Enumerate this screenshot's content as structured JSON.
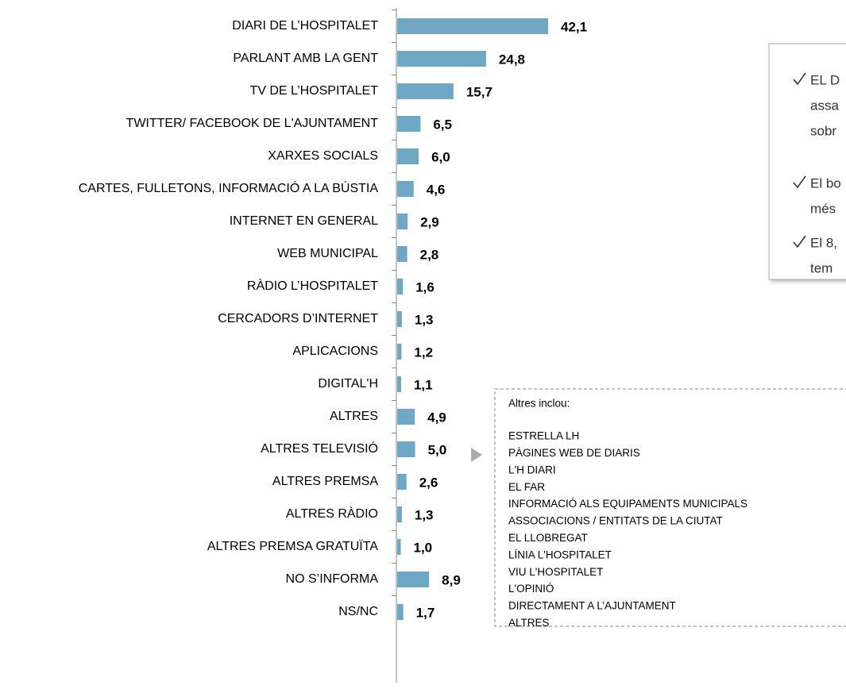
{
  "chart_data": {
    "type": "bar",
    "orientation": "horizontal",
    "categories": [
      "DIARI DE L’HOSPITALET",
      "PARLANT AMB LA GENT",
      "TV DE L’HOSPITALET",
      "TWITTER/ FACEBOOK DE L'AJUNTAMENT",
      "XARXES SOCIALS",
      "CARTES, FULLETONS, INFORMACIÓ A LA BÚSTIA",
      "INTERNET EN GENERAL",
      "WEB MUNICIPAL",
      "RÀDIO L’HOSPITALET",
      "CERCADORS D’INTERNET",
      "APLICACIONS",
      "DIGITAL'H",
      "ALTRES",
      "ALTRES TELEVISIÓ",
      "ALTRES PREMSA",
      "ALTRES RÀDIO",
      "ALTRES PREMSA GRATUÏTA",
      "NO S’INFORMA",
      "NS/NC"
    ],
    "values": [
      42.1,
      24.8,
      15.7,
      6.5,
      6.0,
      4.6,
      2.9,
      2.8,
      1.6,
      1.3,
      1.2,
      1.1,
      4.9,
      5.0,
      2.6,
      1.3,
      1.0,
      8.9,
      1.7
    ],
    "value_labels": [
      "42,1",
      "24,8",
      "15,7",
      "6,5",
      "6,0",
      "4,6",
      "2,9",
      "2,8",
      "1,6",
      "1,3",
      "1,2",
      "1,1",
      "4,9",
      "5,0",
      "2,6",
      "1,3",
      "1,0",
      "8,9",
      "1,7"
    ],
    "color": "#6fa8c4"
  },
  "callout": {
    "lines": [
      "EL D",
      "assa",
      "sobr",
      "El bo",
      "més",
      "El 8,",
      "tem"
    ]
  },
  "altres_box": {
    "title": "Altres inclou:",
    "items": [
      "ESTRELLA LH",
      "PÀGINES WEB DE DIARIS",
      "L'H DIARI",
      "EL FAR",
      "INFORMACIÓ ALS EQUIPAMENTS MUNICIPALS",
      "ASSOCIACIONS / ENTITATS DE LA CIUTAT",
      "EL LLOBREGAT",
      "LÍNIA L'HOSPITALET",
      "VIU L'HOSPITALET",
      "L'OPINIÓ",
      "DIRECTAMENT A L’AJUNTAMENT",
      "ALTRES"
    ]
  }
}
